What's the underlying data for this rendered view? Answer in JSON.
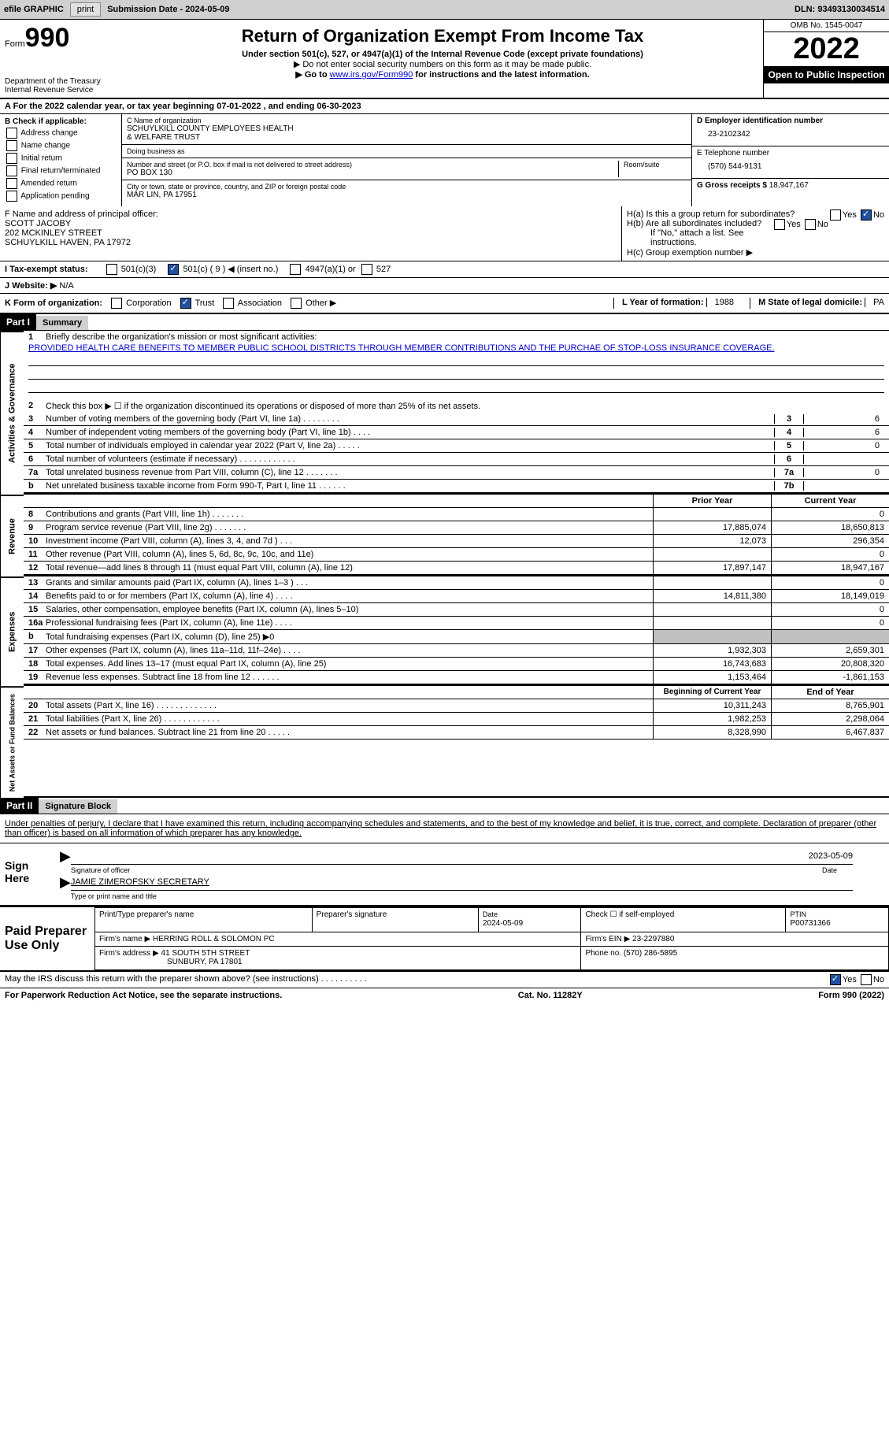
{
  "header_bar": {
    "efile": "efile GRAPHIC",
    "print_btn": "print",
    "sub_date_lbl": "Submission Date - ",
    "sub_date": "2024-05-09",
    "dln_lbl": "DLN: ",
    "dln": "93493130034514"
  },
  "top": {
    "form_word": "Form",
    "form_num": "990",
    "dept": "Department of the Treasury\nInternal Revenue Service",
    "title": "Return of Organization Exempt From Income Tax",
    "under": "Under section 501(c), 527, or 4947(a)(1) of the Internal Revenue Code (except private foundations)",
    "dne": "▶ Do not enter social security numbers on this form as it may be made public.",
    "goto": "▶ Go to ",
    "goto_link": "www.irs.gov/Form990",
    "goto_tail": " for instructions and the latest information.",
    "omb": "OMB No. 1545-0047",
    "year": "2022",
    "otp": "Open to Public Inspection"
  },
  "A": {
    "text": "A For the 2022 calendar year, or tax year beginning ",
    "beg": "07-01-2022",
    "mid": " , and ending ",
    "end": "06-30-2023"
  },
  "B": {
    "hdr": "B Check if applicable:",
    "items": [
      "Address change",
      "Name change",
      "Initial return",
      "Final return/terminated",
      "Amended return",
      "Application pending"
    ]
  },
  "C": {
    "name_lbl": "C Name of organization",
    "name": "SCHUYLKILL COUNTY EMPLOYEES HEALTH\n& WELFARE TRUST",
    "dba_lbl": "Doing business as",
    "addr_lbl": "Number and street (or P.O. box if mail is not delivered to street address)",
    "addr": "PO BOX 130",
    "room_lbl": "Room/suite",
    "city_lbl": "City or town, state or province, country, and ZIP or foreign postal code",
    "city": "MAR LIN, PA  17951"
  },
  "D": {
    "lbl": "D Employer identification number",
    "val": "23-2102342"
  },
  "E": {
    "lbl": "E Telephone number",
    "val": "(570) 544-9131"
  },
  "G": {
    "lbl": "G Gross receipts $ ",
    "val": "18,947,167"
  },
  "F": {
    "lbl": "F  Name and address of principal officer:",
    "name": "SCOTT JACOBY",
    "addr1": "202 MCKINLEY STREET",
    "addr2": "SCHUYLKILL HAVEN, PA  17972"
  },
  "H": {
    "a": "H(a)  Is this a group return for subordinates?",
    "b": "H(b)  Are all subordinates included?",
    "b_note": "If \"No,\" attach a list. See instructions.",
    "c": "H(c)  Group exemption number ▶",
    "yes": "Yes",
    "no": "No"
  },
  "I": {
    "lbl": "I  Tax-exempt status:",
    "opts": [
      "501(c)(3)",
      "501(c) ( 9 ) ◀ (insert no.)",
      "4947(a)(1) or",
      "527"
    ]
  },
  "J": {
    "lbl": "J  Website: ▶",
    "val": " N/A"
  },
  "K": {
    "lbl": "K Form of organization:",
    "opts": [
      "Corporation",
      "Trust",
      "Association",
      "Other ▶"
    ],
    "yr_lbl": "L Year of formation: ",
    "yr": "1988",
    "st_lbl": "M State of legal domicile: ",
    "st": "PA"
  },
  "part1": {
    "num": "Part I",
    "title": "Summary"
  },
  "s1": {
    "vlabel": "Activities & Governance",
    "l1": "Briefly describe the organization's mission or most significant activities:",
    "mission": "PROVIDED HEALTH CARE BENEFITS TO MEMBER PUBLIC SCHOOL DISTRICTS THROUGH MEMBER CONTRIBUTIONS AND THE PURCHAE OF STOP-LOSS INSURANCE COVERAGE.",
    "l2": "Check this box ▶ ☐ if the organization discontinued its operations or disposed of more than 25% of its net assets.",
    "rows": [
      {
        "n": "3",
        "t": "Number of voting members of the governing body (Part VI, line 1a)  .    .    .    .    .    .    .    .",
        "b": "3",
        "v": "6"
      },
      {
        "n": "4",
        "t": "Number of independent voting members of the governing body (Part VI, line 1b)  .    .    .    .",
        "b": "4",
        "v": "6"
      },
      {
        "n": "5",
        "t": "Total number of individuals employed in calendar year 2022 (Part V, line 2a)  .    .    .    .    .",
        "b": "5",
        "v": "0"
      },
      {
        "n": "6",
        "t": "Total number of volunteers (estimate if necessary)   .    .    .    .    .    .    .    .    .    .    .    .",
        "b": "6",
        "v": ""
      },
      {
        "n": "7a",
        "t": "Total unrelated business revenue from Part VIII, column (C), line 12  .    .    .    .    .    .    .",
        "b": "7a",
        "v": "0"
      },
      {
        "n": "b",
        "t": "Net unrelated business taxable income from Form 990-T, Part I, line 11  .    .    .    .    .    .",
        "b": "7b",
        "v": ""
      }
    ]
  },
  "s2": {
    "vlabel": "Revenue",
    "hdr_prior": "Prior Year",
    "hdr_curr": "Current Year",
    "rows": [
      {
        "n": "8",
        "t": "Contributions and grants (Part VIII, line 1h)   .    .    .    .    .    .    .",
        "p": "",
        "c": "0"
      },
      {
        "n": "9",
        "t": "Program service revenue (Part VIII, line 2g)  .    .    .    .    .    .    .",
        "p": "17,885,074",
        "c": "18,650,813"
      },
      {
        "n": "10",
        "t": "Investment income (Part VIII, column (A), lines 3, 4, and 7d )  .    .    .",
        "p": "12,073",
        "c": "296,354"
      },
      {
        "n": "11",
        "t": "Other revenue (Part VIII, column (A), lines 5, 6d, 8c, 9c, 10c, and 11e)",
        "p": "",
        "c": "0"
      },
      {
        "n": "12",
        "t": "Total revenue—add lines 8 through 11 (must equal Part VIII, column (A), line 12)",
        "p": "17,897,147",
        "c": "18,947,167"
      }
    ]
  },
  "s3": {
    "vlabel": "Expenses",
    "rows": [
      {
        "n": "13",
        "t": "Grants and similar amounts paid (Part IX, column (A), lines 1–3 )  .    .    .",
        "p": "",
        "c": "0"
      },
      {
        "n": "14",
        "t": "Benefits paid to or for members (Part IX, column (A), line 4)  .    .    .    .",
        "p": "14,811,380",
        "c": "18,149,019"
      },
      {
        "n": "15",
        "t": "Salaries, other compensation, employee benefits (Part IX, column (A), lines 5–10)",
        "p": "",
        "c": "0"
      },
      {
        "n": "16a",
        "t": "Professional fundraising fees (Part IX, column (A), line 11e)  .    .    .    .",
        "p": "",
        "c": "0"
      },
      {
        "n": "b",
        "t": "Total fundraising expenses (Part IX, column (D), line 25) ▶0",
        "p": "shade",
        "c": "shade"
      },
      {
        "n": "17",
        "t": "Other expenses (Part IX, column (A), lines 11a–11d, 11f–24e)  .    .    .    .",
        "p": "1,932,303",
        "c": "2,659,301"
      },
      {
        "n": "18",
        "t": "Total expenses. Add lines 13–17 (must equal Part IX, column (A), line 25)",
        "p": "16,743,683",
        "c": "20,808,320"
      },
      {
        "n": "19",
        "t": "Revenue less expenses. Subtract line 18 from line 12  .    .    .    .    .    .",
        "p": "1,153,464",
        "c": "-1,861,153"
      }
    ]
  },
  "s4": {
    "vlabel": "Net Assets or Fund Balances",
    "hdr_beg": "Beginning of Current Year",
    "hdr_end": "End of Year",
    "rows": [
      {
        "n": "20",
        "t": "Total assets (Part X, line 16)  .    .    .    .    .    .    .    .    .    .    .    .    .",
        "p": "10,311,243",
        "c": "8,765,901"
      },
      {
        "n": "21",
        "t": "Total liabilities (Part X, line 26)  .    .    .    .    .    .    .    .    .    .    .    .",
        "p": "1,982,253",
        "c": "2,298,064"
      },
      {
        "n": "22",
        "t": "Net assets or fund balances. Subtract line 21 from line 20  .    .    .    .    .",
        "p": "8,328,990",
        "c": "6,467,837"
      }
    ]
  },
  "part2": {
    "num": "Part II",
    "title": "Signature Block"
  },
  "sig": {
    "perjury": "Under penalties of perjury, I declare that I have examined this return, including accompanying schedules and statements, and to the best of my knowledge and belief, it is true, correct, and complete. Declaration of preparer (other than officer) is based on all information of which preparer has any knowledge.",
    "sign_here": "Sign Here",
    "sig_of": "Signature of officer",
    "date": "2023-05-09",
    "date_lbl": "Date",
    "name": "JAMIE ZIMEROFSKY SECRETARY",
    "name_lbl": "Type or print name and title"
  },
  "prep": {
    "lbl": "Paid Preparer Use Only",
    "r1": {
      "c1": "Print/Type preparer's name",
      "c2": "Preparer's signature",
      "c3_lbl": "Date",
      "c3": "2024-05-09",
      "c4": "Check ☐ if self-employed",
      "c5_lbl": "PTIN",
      "c5": "P00731366"
    },
    "r2": {
      "c1": "Firm's name    ▶ ",
      "c1v": "HERRING ROLL & SOLOMON PC",
      "c2": "Firm's EIN ▶ ",
      "c2v": "23-2297880"
    },
    "r3": {
      "c1": "Firm's address ▶ ",
      "c1v": "41 SOUTH 5TH STREET",
      "c1v2": "SUNBURY, PA  17801",
      "c2": "Phone no. ",
      "c2v": "(570) 286-5895"
    }
  },
  "discuss": {
    "txt": "May the IRS discuss this return with the preparer shown above? (see instructions)  .    .    .    .    .    .    .    .    .    .",
    "yes": "Yes",
    "no": "No"
  },
  "bottom": {
    "l": "For Paperwork Reduction Act Notice, see the separate instructions.",
    "c": "Cat. No. 11282Y",
    "r": "Form 990 (2022)"
  }
}
